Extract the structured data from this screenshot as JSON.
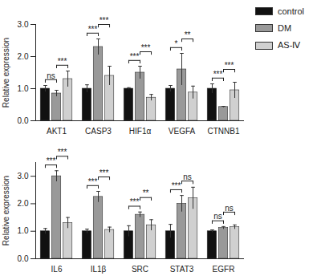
{
  "chart_data": [
    {
      "type": "bar",
      "ylabel": "Relative expression",
      "categories": [
        "AKT1",
        "CASP3",
        "HIF1α",
        "VEGFA",
        "CTNNB1"
      ],
      "series": [
        {
          "name": "control",
          "color": "#111111",
          "values": [
            1.0,
            1.0,
            1.0,
            1.0,
            1.0
          ],
          "errors": [
            0.1,
            0.12,
            0.03,
            0.1,
            0.15
          ]
        },
        {
          "name": "DM",
          "color": "#999999",
          "values": [
            0.85,
            2.3,
            1.5,
            1.6,
            0.43
          ],
          "errors": [
            0.1,
            0.25,
            0.2,
            0.5,
            0.02
          ]
        },
        {
          "name": "AS-Ⅳ",
          "color": "#d0d0d0",
          "values": [
            1.3,
            1.4,
            0.72,
            0.88,
            0.95
          ],
          "errors": [
            0.25,
            0.3,
            0.1,
            0.2,
            0.25
          ]
        }
      ],
      "ylim": [
        0,
        3
      ],
      "yticks": [
        0,
        1,
        2,
        3
      ],
      "legend": "right",
      "significance": [
        {
          "category": "AKT1",
          "groups": [
            "control",
            "DM"
          ],
          "label": "ns"
        },
        {
          "category": "AKT1",
          "groups": [
            "DM",
            "AS-Ⅳ"
          ],
          "label": "***"
        },
        {
          "category": "CASP3",
          "groups": [
            "control",
            "DM"
          ],
          "label": "***"
        },
        {
          "category": "CASP3",
          "groups": [
            "DM",
            "AS-Ⅳ"
          ],
          "label": "***"
        },
        {
          "category": "HIF1α",
          "groups": [
            "control",
            "DM"
          ],
          "label": "***"
        },
        {
          "category": "HIF1α",
          "groups": [
            "DM",
            "AS-Ⅳ"
          ],
          "label": "***"
        },
        {
          "category": "VEGFA",
          "groups": [
            "control",
            "DM"
          ],
          "label": "*"
        },
        {
          "category": "VEGFA",
          "groups": [
            "DM",
            "AS-Ⅳ"
          ],
          "label": "**"
        },
        {
          "category": "CTNNB1",
          "groups": [
            "control",
            "DM"
          ],
          "label": "***"
        },
        {
          "category": "CTNNB1",
          "groups": [
            "DM",
            "AS-Ⅳ"
          ],
          "label": "***"
        }
      ]
    },
    {
      "type": "bar",
      "ylabel": "Relative expression",
      "categories": [
        "IL6",
        "IL1β",
        "SRC",
        "STAT3",
        "EGFR"
      ],
      "series": [
        {
          "name": "control",
          "color": "#111111",
          "values": [
            1.0,
            1.0,
            1.0,
            1.0,
            1.0
          ],
          "errors": [
            0.1,
            0.08,
            0.2,
            0.25,
            0.05
          ]
        },
        {
          "name": "DM",
          "color": "#999999",
          "values": [
            3.0,
            2.25,
            1.6,
            2.0,
            1.12
          ],
          "errors": [
            0.2,
            0.2,
            0.1,
            0.3,
            0.05
          ]
        },
        {
          "name": "AS-Ⅳ",
          "color": "#d0d0d0",
          "values": [
            1.3,
            1.05,
            1.22,
            2.2,
            1.15
          ],
          "errors": [
            0.2,
            0.1,
            0.2,
            0.4,
            0.08
          ]
        }
      ],
      "ylim": [
        0,
        3.5
      ],
      "yticks": [
        0,
        1,
        2,
        3
      ],
      "significance": [
        {
          "category": "IL6",
          "groups": [
            "control",
            "DM"
          ],
          "label": "***"
        },
        {
          "category": "IL6",
          "groups": [
            "DM",
            "AS-Ⅳ"
          ],
          "label": "***"
        },
        {
          "category": "IL1β",
          "groups": [
            "control",
            "DM"
          ],
          "label": "***"
        },
        {
          "category": "IL1β",
          "groups": [
            "DM",
            "AS-Ⅳ"
          ],
          "label": "***"
        },
        {
          "category": "SRC",
          "groups": [
            "control",
            "DM"
          ],
          "label": "***"
        },
        {
          "category": "SRC",
          "groups": [
            "DM",
            "AS-Ⅳ"
          ],
          "label": "**"
        },
        {
          "category": "STAT3",
          "groups": [
            "control",
            "DM"
          ],
          "label": "***"
        },
        {
          "category": "STAT3",
          "groups": [
            "DM",
            "AS-Ⅳ"
          ],
          "label": "ns"
        },
        {
          "category": "EGFR",
          "groups": [
            "control",
            "DM"
          ],
          "label": "ns"
        },
        {
          "category": "EGFR",
          "groups": [
            "DM",
            "AS-Ⅳ"
          ],
          "label": "ns"
        }
      ]
    }
  ]
}
